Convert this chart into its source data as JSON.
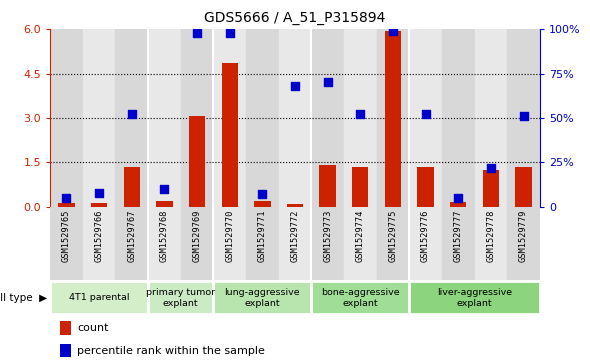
{
  "title": "GDS5666 / A_51_P315894",
  "samples": [
    "GSM1529765",
    "GSM1529766",
    "GSM1529767",
    "GSM1529768",
    "GSM1529769",
    "GSM1529770",
    "GSM1529771",
    "GSM1529772",
    "GSM1529773",
    "GSM1529774",
    "GSM1529775",
    "GSM1529776",
    "GSM1529777",
    "GSM1529778",
    "GSM1529779"
  ],
  "counts": [
    0.12,
    0.12,
    1.35,
    0.2,
    3.05,
    4.85,
    0.2,
    0.1,
    1.42,
    1.35,
    5.95,
    1.35,
    0.18,
    1.25,
    1.35
  ],
  "percentile_ranks": [
    5,
    8,
    52,
    10,
    98,
    98,
    7,
    68,
    70,
    52,
    99,
    52,
    5,
    22,
    51
  ],
  "cell_types": [
    {
      "label": "4T1 parental",
      "start": 0,
      "end": 3,
      "color": "#d4eeca"
    },
    {
      "label": "primary tumor\nexplant",
      "start": 3,
      "end": 5,
      "color": "#cbebc4"
    },
    {
      "label": "lung-aggressive\nexplant",
      "start": 5,
      "end": 8,
      "color": "#b8e5ae"
    },
    {
      "label": "bone-aggressive\nexplant",
      "start": 8,
      "end": 11,
      "color": "#a0dd96"
    },
    {
      "label": "liver-aggressive\nexplant",
      "start": 11,
      "end": 15,
      "color": "#8cd47e"
    }
  ],
  "group_boundaries": [
    3,
    5,
    8,
    11
  ],
  "ylim_left": [
    0,
    6
  ],
  "ylim_right": [
    0,
    100
  ],
  "yticks_left": [
    0,
    1.5,
    3.0,
    4.5,
    6.0
  ],
  "yticks_right": [
    0,
    25,
    50,
    75,
    100
  ],
  "bar_color": "#cc2200",
  "dot_color": "#0000cc",
  "col_bg_odd": "#d8d8d8",
  "col_bg_even": "#e8e8e8",
  "plot_bg": "#ffffff",
  "legend_count_label": "count",
  "legend_pct_label": "percentile rank within the sample",
  "bar_width": 0.5,
  "dot_size": 30
}
